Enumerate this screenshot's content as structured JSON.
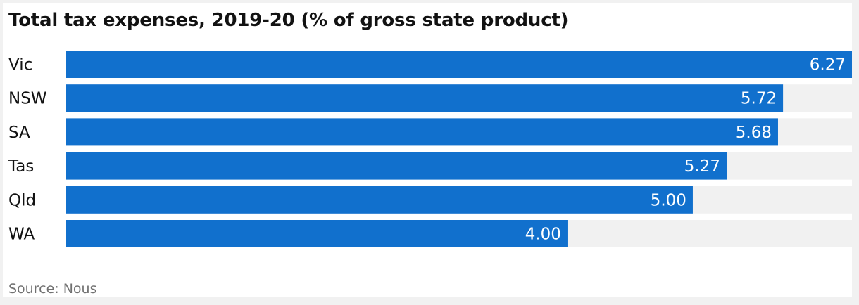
{
  "title": "Total tax expenses, 2019-20 (% of gross state product)",
  "source": "Source: Nous",
  "colors": {
    "bar": "#1170cd",
    "track": "#f1f1f1",
    "value_text": "#ffffff",
    "category_text": "#121212"
  },
  "chart_data": {
    "type": "bar",
    "orientation": "horizontal",
    "title": "Total tax expenses, 2019-20 (% of gross state product)",
    "categories": [
      "Vic",
      "NSW",
      "SA",
      "Tas",
      "Qld",
      "WA"
    ],
    "values": [
      6.27,
      5.72,
      5.68,
      5.27,
      5.0,
      4.0
    ],
    "value_labels": [
      "6.27",
      "5.72",
      "5.68",
      "5.27",
      "5.00",
      "4.00"
    ],
    "xlim": [
      0,
      6.27
    ],
    "grid": false,
    "legend": "none"
  }
}
